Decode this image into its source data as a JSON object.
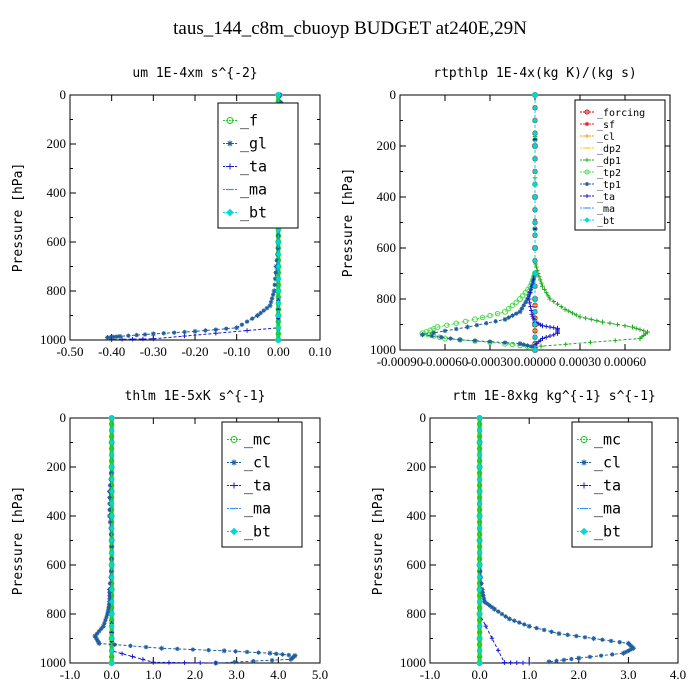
{
  "title": "taus_144_c8m_cbuoyp  BUDGET at240E,29N",
  "chart_data": [
    {
      "type": "line",
      "title": "um   1E-4xm  s^{-2}",
      "ylabel": "Pressure [hPa]",
      "xlim": [
        -0.5,
        0.1
      ],
      "ylim": [
        1000,
        0
      ],
      "xticks": [
        "-0.50",
        "-0.40",
        "-0.30",
        "-0.20",
        "-0.10",
        "0.00",
        "0.10"
      ],
      "yticks": [
        "0",
        "200",
        "400",
        "600",
        "800",
        "1000"
      ],
      "legend_style": "big",
      "series": [
        {
          "name": "_f",
          "color": "#22cc22",
          "marker": "circle",
          "x": [
            0.0,
            0.0,
            0.0,
            0.0,
            0.0,
            0.0,
            0.0,
            0.0,
            0.0,
            0.0,
            0.0
          ],
          "y": [
            0,
            100,
            200,
            300,
            400,
            500,
            600,
            700,
            800,
            900,
            1000
          ]
        },
        {
          "name": "_gl",
          "color": "#1f5f9f",
          "marker": "star",
          "x": [
            0.005,
            0.01,
            -0.005,
            0.005,
            0.005,
            0.0,
            0.0,
            -0.005,
            -0.01,
            -0.02,
            -0.05,
            -0.1,
            -0.2,
            -0.3,
            -0.38,
            -0.41
          ],
          "y": [
            0,
            120,
            200,
            300,
            400,
            500,
            600,
            700,
            800,
            860,
            900,
            950,
            965,
            975,
            985,
            990
          ]
        },
        {
          "name": "_ta",
          "color": "#1a1acc",
          "marker": "plus",
          "x": [
            0.0,
            0.0,
            0.0,
            0.0,
            0.0,
            0.0,
            -0.3,
            -0.4
          ],
          "y": [
            0,
            200,
            400,
            600,
            800,
            950,
            995,
            998
          ]
        },
        {
          "name": "_ma",
          "color": "#3399ff",
          "marker": "dash",
          "x": [
            0.0,
            0.0,
            0.0,
            0.0,
            0.0,
            0.0
          ],
          "y": [
            0,
            200,
            400,
            600,
            800,
            1000
          ]
        },
        {
          "name": "_bt",
          "color": "#00d8d8",
          "marker": "diamond",
          "x": [
            0.0,
            0.0,
            0.0,
            0.0,
            0.0,
            0.0
          ],
          "y": [
            0,
            200,
            400,
            600,
            800,
            1000
          ]
        }
      ]
    },
    {
      "type": "line",
      "title": "rtpthlp   1E-4x(kg K)/(kg s)",
      "ylabel": "Pressure [hPa]",
      "xlim": [
        -0.0009,
        0.0009
      ],
      "ylim": [
        1000,
        0
      ],
      "xticks": [
        "-0.00090",
        "-0.00060",
        "-0.00030",
        "0.00000",
        "0.00030",
        "0.00060"
      ],
      "yticks": [
        "0",
        "200",
        "400",
        "600",
        "800",
        "1000"
      ],
      "legend_style": "small",
      "series": [
        {
          "name": "_forcing",
          "color": "#cc0000",
          "marker": "circle",
          "x": [
            0,
            0,
            0,
            0,
            0,
            0,
            0
          ],
          "y": [
            0,
            200,
            400,
            600,
            800,
            900,
            1000
          ]
        },
        {
          "name": "_sf",
          "color": "#ee2222",
          "marker": "star",
          "x": [
            0,
            0,
            0,
            0,
            0,
            0,
            0
          ],
          "y": [
            0,
            200,
            400,
            600,
            800,
            900,
            1000
          ]
        },
        {
          "name": "_cl",
          "color": "#ff9900",
          "marker": "plus",
          "x": [
            0,
            0,
            0,
            0,
            0,
            0,
            0
          ],
          "y": [
            0,
            200,
            400,
            600,
            800,
            900,
            1000
          ]
        },
        {
          "name": "_dp2",
          "color": "#ffcc00",
          "marker": "dash",
          "x": [
            0,
            0,
            0,
            0,
            0,
            0,
            0
          ],
          "y": [
            0,
            200,
            400,
            600,
            800,
            900,
            1000
          ]
        },
        {
          "name": "_dp1",
          "color": "#22aa22",
          "marker": "plus",
          "x": [
            0.0,
            0.0,
            2e-05,
            5e-05,
            0.0001,
            0.0002,
            0.0003,
            0.00045,
            0.00065,
            0.00075,
            0.0007,
            4e-05
          ],
          "y": [
            0,
            650,
            700,
            750,
            800,
            840,
            870,
            890,
            910,
            930,
            955,
            985
          ]
        },
        {
          "name": "_tp2",
          "color": "#44dd44",
          "marker": "circle",
          "x": [
            0.0,
            0.0,
            -3e-05,
            -0.0001,
            -0.0002,
            -0.0004,
            -0.00065,
            -0.00075,
            -0.0006,
            -0.0002,
            0.0
          ],
          "y": [
            0,
            700,
            750,
            800,
            850,
            880,
            910,
            935,
            955,
            975,
            990
          ]
        },
        {
          "name": "_tp1",
          "color": "#1f5f9f",
          "marker": "star",
          "x": [
            0.0,
            0.0,
            -2e-05,
            -5e-05,
            -0.0001,
            -0.0002,
            -0.00045,
            -0.00075,
            -0.0005,
            -0.0001,
            0.0
          ],
          "y": [
            0,
            700,
            750,
            800,
            850,
            880,
            910,
            940,
            960,
            975,
            990
          ]
        },
        {
          "name": "_ta",
          "color": "#1a1acc",
          "marker": "plus",
          "x": [
            0.0,
            0.0,
            -4e-05,
            -2e-05,
            0.0,
            5e-05,
            0.00015,
            0.00015,
            5e-05,
            0.0
          ],
          "y": [
            0,
            700,
            800,
            860,
            890,
            905,
            915,
            935,
            955,
            980
          ]
        },
        {
          "name": "_ma",
          "color": "#3399ff",
          "marker": "dash",
          "x": [
            0,
            0,
            0,
            0,
            0,
            0
          ],
          "y": [
            0,
            200,
            400,
            600,
            800,
            1000
          ]
        },
        {
          "name": "_bt",
          "color": "#00d8d8",
          "marker": "diamond",
          "x": [
            0,
            0,
            0,
            0,
            0,
            0
          ],
          "y": [
            0,
            200,
            400,
            600,
            800,
            1000
          ]
        }
      ]
    },
    {
      "type": "line",
      "title": "thlm   1E-5xK  s^{-1}",
      "ylabel": "Pressure [hPa]",
      "xlim": [
        -1.0,
        5.0
      ],
      "ylim": [
        1000,
        0
      ],
      "xticks": [
        "-1.0",
        "0.0",
        "1.0",
        "2.0",
        "3.0",
        "4.0",
        "5.0"
      ],
      "yticks": [
        "0",
        "200",
        "400",
        "600",
        "800",
        "1000"
      ],
      "legend_style": "big",
      "series": [
        {
          "name": "_mc",
          "color": "#22cc22",
          "marker": "circle",
          "x": [
            0.0,
            0.0,
            0.0,
            0.0,
            0.0,
            0.0,
            0.0,
            0.0,
            0.0,
            0.0,
            0.0
          ],
          "y": [
            0,
            100,
            200,
            300,
            400,
            500,
            600,
            700,
            800,
            900,
            1000
          ]
        },
        {
          "name": "_cl",
          "color": "#1f5f9f",
          "marker": "star",
          "x": [
            0.0,
            0.0,
            -0.05,
            -0.05,
            0.0,
            0.0,
            -0.05,
            -0.05,
            -0.1,
            -0.2,
            -0.4,
            -0.3,
            1.2,
            2.7,
            3.8,
            4.4,
            4.3,
            2.5
          ],
          "y": [
            0,
            200,
            300,
            400,
            500,
            600,
            700,
            750,
            800,
            850,
            890,
            920,
            940,
            950,
            960,
            970,
            985,
            1000
          ]
        },
        {
          "name": "_ta",
          "color": "#1a1acc",
          "marker": "plus",
          "x": [
            0.0,
            0.0,
            0.0,
            0.0,
            0.0,
            0.0,
            1.0,
            2.5
          ],
          "y": [
            0,
            200,
            400,
            600,
            800,
            950,
            997,
            1000
          ]
        },
        {
          "name": "_ma",
          "color": "#3399ff",
          "marker": "dash",
          "x": [
            0,
            0,
            0,
            0,
            0,
            0
          ],
          "y": [
            0,
            200,
            400,
            600,
            800,
            1000
          ]
        },
        {
          "name": "_bt",
          "color": "#00d8d8",
          "marker": "diamond",
          "x": [
            0,
            0,
            0,
            0,
            0,
            0
          ],
          "y": [
            0,
            200,
            400,
            600,
            800,
            1000
          ]
        }
      ]
    },
    {
      "type": "line",
      "title": "rtm   1E-8xkg  kg^{-1}  s^{-1}",
      "ylabel": "Pressure [hPa]",
      "xlim": [
        -1.0,
        4.0
      ],
      "ylim": [
        1000,
        0
      ],
      "xticks": [
        "-1.0",
        "0.0",
        "1.0",
        "2.0",
        "3.0",
        "4.0"
      ],
      "yticks": [
        "0",
        "200",
        "400",
        "600",
        "800",
        "1000"
      ],
      "legend_style": "big",
      "series": [
        {
          "name": "_mc",
          "color": "#22cc22",
          "marker": "circle",
          "x": [
            0.0,
            0.0,
            0.0,
            0.0,
            0.0,
            0.0,
            0.0,
            0.0,
            0.0,
            0.0,
            0.0
          ],
          "y": [
            0,
            100,
            200,
            300,
            400,
            500,
            600,
            700,
            800,
            900,
            1000
          ]
        },
        {
          "name": "_cl",
          "color": "#1f5f9f",
          "marker": "star",
          "x": [
            0.0,
            0.0,
            0.0,
            0.0,
            0.05,
            0.1,
            0.3,
            0.6,
            1.0,
            1.6,
            2.3,
            3.0,
            3.1,
            2.9,
            2.0,
            1.4
          ],
          "y": [
            0,
            200,
            400,
            600,
            700,
            750,
            780,
            820,
            850,
            880,
            900,
            920,
            940,
            960,
            980,
            995
          ]
        },
        {
          "name": "_ta",
          "color": "#1a1acc",
          "marker": "plus",
          "x": [
            0.0,
            0.0,
            0.0,
            0.0,
            0.5,
            1.0
          ],
          "y": [
            0,
            200,
            400,
            800,
            998,
            1000
          ]
        },
        {
          "name": "_ma",
          "color": "#3399ff",
          "marker": "dash",
          "x": [
            0,
            0,
            0,
            0,
            0,
            0
          ],
          "y": [
            0,
            200,
            400,
            600,
            800,
            1000
          ]
        },
        {
          "name": "_bt",
          "color": "#00d8d8",
          "marker": "diamond",
          "x": [
            0,
            0,
            0,
            0,
            0,
            0
          ],
          "y": [
            0,
            200,
            400,
            600,
            800,
            1000
          ]
        }
      ]
    }
  ]
}
